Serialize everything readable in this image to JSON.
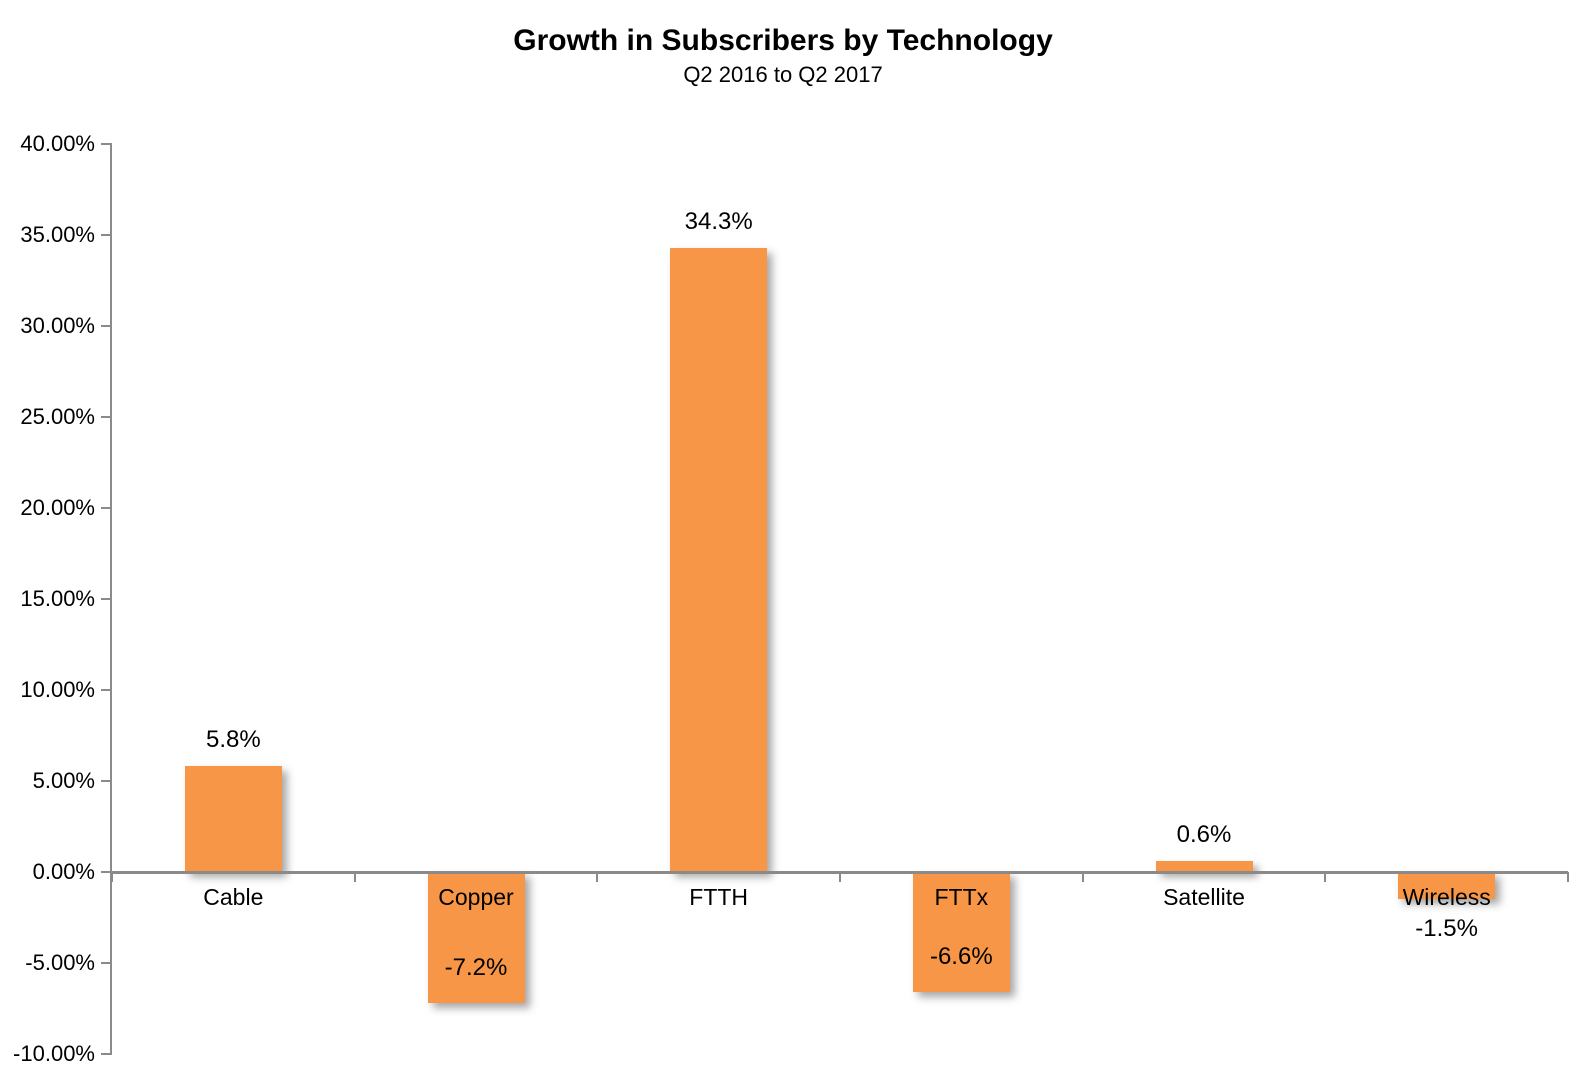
{
  "chart_data": {
    "type": "bar",
    "title": "Growth in Subscribers by Technology",
    "subtitle": "Q2 2016 to Q2 2017",
    "categories": [
      "Cable",
      "Copper",
      "FTTH",
      "FTTx",
      "Satellite",
      "Wireless"
    ],
    "values": [
      5.8,
      -7.2,
      34.3,
      -6.6,
      0.6,
      -1.5
    ],
    "data_labels": [
      "5.8%",
      "-7.2%",
      "34.3%",
      "-6.6%",
      "0.6%",
      "-1.5%"
    ],
    "y_ticks": [
      "40.00%",
      "35.00%",
      "30.00%",
      "25.00%",
      "20.00%",
      "15.00%",
      "10.00%",
      "5.00%",
      "0.00%",
      "-5.00%",
      "-10.00%"
    ],
    "ylim": [
      -10,
      40
    ],
    "xlabel": "",
    "ylabel": "",
    "grid": false,
    "legend": false,
    "bar_color": "#F79646",
    "axis_color": "#8A8A8A",
    "text_color": "#000000"
  }
}
